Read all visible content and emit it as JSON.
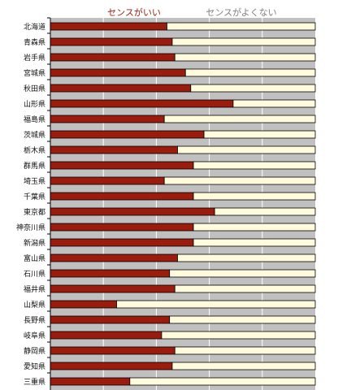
{
  "chart_data": {
    "type": "bar",
    "orientation": "horizontal",
    "stacked": true,
    "percent": true,
    "xlim": [
      0,
      100
    ],
    "grid": true,
    "legend_position": "top",
    "categories": [
      "北海道",
      "青森県",
      "岩手県",
      "宮城県",
      "秋田県",
      "山形県",
      "福島県",
      "茨城県",
      "栃木県",
      "群馬県",
      "埼玉県",
      "千葉県",
      "東京都",
      "神奈川県",
      "新潟県",
      "富山県",
      "石川県",
      "福井県",
      "山梨県",
      "長野県",
      "岐阜県",
      "静岡県",
      "愛知県",
      "三重県"
    ],
    "series": [
      {
        "name": "センスがいい",
        "color": "#9b1c0c",
        "values": [
          44,
          46,
          47,
          51,
          53,
          69,
          43,
          58,
          48,
          54,
          43,
          54,
          62,
          54,
          54,
          48,
          45,
          47,
          25,
          45,
          42,
          47,
          46,
          30
        ]
      },
      {
        "name": "センスがよくない",
        "color": "#fffbdc",
        "values": [
          56,
          54,
          53,
          49,
          47,
          31,
          57,
          42,
          52,
          46,
          57,
          46,
          38,
          46,
          46,
          52,
          55,
          53,
          75,
          55,
          58,
          53,
          54,
          70
        ]
      }
    ]
  },
  "colors": {
    "plot_background": "#c0c0c0",
    "gridline": "#ffffff",
    "bar_outline": "#000000",
    "legend_series1_text": "#9b1c0c",
    "legend_series2_text": "#808080"
  }
}
